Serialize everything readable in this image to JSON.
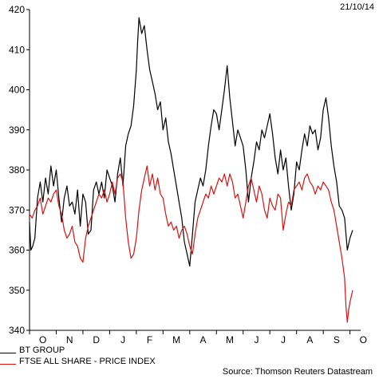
{
  "header": {
    "date": "21/10/14"
  },
  "footer": {
    "source": "Source: Thomson Reuters Datastream"
  },
  "chart_data": {
    "type": "line",
    "title": "",
    "xlabel": "",
    "ylabel": "",
    "ylim": [
      340,
      420
    ],
    "yticks": [
      340,
      350,
      360,
      370,
      380,
      390,
      400,
      410,
      420
    ],
    "ytick_labels": [
      "340",
      "350",
      "360",
      "370",
      "380",
      "390",
      "400",
      "410",
      "420"
    ],
    "x_categories": [
      "O",
      "N",
      "D",
      "J",
      "F",
      "M",
      "A",
      "M",
      "J",
      "J",
      "A",
      "S",
      "O"
    ],
    "x_range": [
      "2013-10",
      "2014-10"
    ],
    "grid": false,
    "legend_position": "bottom-left",
    "series": [
      {
        "name": "BT GROUP",
        "color": "#000000",
        "points": [
          [
            0.0,
            367
          ],
          [
            0.05,
            360
          ],
          [
            0.12,
            361
          ],
          [
            0.2,
            363
          ],
          [
            0.3,
            373
          ],
          [
            0.4,
            377
          ],
          [
            0.5,
            372
          ],
          [
            0.6,
            378
          ],
          [
            0.7,
            374
          ],
          [
            0.8,
            381
          ],
          [
            0.9,
            376
          ],
          [
            1.0,
            380
          ],
          [
            1.1,
            373
          ],
          [
            1.2,
            367
          ],
          [
            1.3,
            373
          ],
          [
            1.4,
            376
          ],
          [
            1.5,
            371
          ],
          [
            1.6,
            372
          ],
          [
            1.7,
            369
          ],
          [
            1.8,
            375
          ],
          [
            1.9,
            366
          ],
          [
            2.0,
            374
          ],
          [
            2.1,
            372
          ],
          [
            2.2,
            364
          ],
          [
            2.3,
            365
          ],
          [
            2.4,
            375
          ],
          [
            2.5,
            377
          ],
          [
            2.6,
            374
          ],
          [
            2.7,
            377
          ],
          [
            2.8,
            373
          ],
          [
            2.9,
            380
          ],
          [
            3.0,
            378
          ],
          [
            3.1,
            376
          ],
          [
            3.2,
            372
          ],
          [
            3.3,
            379
          ],
          [
            3.4,
            383
          ],
          [
            3.5,
            376
          ],
          [
            3.6,
            386
          ],
          [
            3.7,
            389
          ],
          [
            3.8,
            391
          ],
          [
            3.9,
            396
          ],
          [
            4.0,
            405
          ],
          [
            4.05,
            412
          ],
          [
            4.1,
            418
          ],
          [
            4.2,
            414
          ],
          [
            4.3,
            416
          ],
          [
            4.4,
            410
          ],
          [
            4.5,
            405
          ],
          [
            4.6,
            402
          ],
          [
            4.7,
            399
          ],
          [
            4.8,
            395
          ],
          [
            4.9,
            397
          ],
          [
            5.0,
            390
          ],
          [
            5.1,
            393
          ],
          [
            5.2,
            387
          ],
          [
            5.3,
            384
          ],
          [
            5.4,
            380
          ],
          [
            5.5,
            376
          ],
          [
            5.6,
            372
          ],
          [
            5.7,
            368
          ],
          [
            5.8,
            362
          ],
          [
            5.9,
            359
          ],
          [
            6.0,
            356
          ],
          [
            6.1,
            364
          ],
          [
            6.2,
            372
          ],
          [
            6.3,
            375
          ],
          [
            6.4,
            378
          ],
          [
            6.5,
            376
          ],
          [
            6.6,
            380
          ],
          [
            6.7,
            386
          ],
          [
            6.8,
            391
          ],
          [
            6.9,
            395
          ],
          [
            7.0,
            394
          ],
          [
            7.1,
            390
          ],
          [
            7.2,
            395
          ],
          [
            7.3,
            400
          ],
          [
            7.4,
            406
          ],
          [
            7.5,
            398
          ],
          [
            7.6,
            392
          ],
          [
            7.7,
            386
          ],
          [
            7.8,
            390
          ],
          [
            7.9,
            388
          ],
          [
            8.0,
            386
          ],
          [
            8.1,
            380
          ],
          [
            8.2,
            372
          ],
          [
            8.3,
            378
          ],
          [
            8.4,
            382
          ],
          [
            8.5,
            387
          ],
          [
            8.6,
            385
          ],
          [
            8.7,
            390
          ],
          [
            8.8,
            388
          ],
          [
            8.9,
            391
          ],
          [
            9.0,
            394
          ],
          [
            9.1,
            389
          ],
          [
            9.2,
            383
          ],
          [
            9.3,
            379
          ],
          [
            9.4,
            385
          ],
          [
            9.5,
            380
          ],
          [
            9.6,
            383
          ],
          [
            9.7,
            376
          ],
          [
            9.8,
            370
          ],
          [
            9.9,
            374
          ],
          [
            10.0,
            382
          ],
          [
            10.1,
            380
          ],
          [
            10.2,
            385
          ],
          [
            10.3,
            389
          ],
          [
            10.4,
            386
          ],
          [
            10.5,
            391
          ],
          [
            10.6,
            389
          ],
          [
            10.7,
            390
          ],
          [
            10.8,
            385
          ],
          [
            10.9,
            388
          ],
          [
            11.0,
            395
          ],
          [
            11.1,
            398
          ],
          [
            11.2,
            393
          ],
          [
            11.3,
            386
          ],
          [
            11.4,
            381
          ],
          [
            11.5,
            377
          ],
          [
            11.6,
            371
          ],
          [
            11.7,
            370
          ],
          [
            11.8,
            368
          ],
          [
            11.9,
            360
          ],
          [
            12.0,
            363
          ],
          [
            12.1,
            365
          ]
        ]
      },
      {
        "name": "FTSE ALL SHARE - PRICE INDEX",
        "color": "#dd1111",
        "points": [
          [
            0.0,
            369
          ],
          [
            0.1,
            368
          ],
          [
            0.2,
            370
          ],
          [
            0.3,
            371
          ],
          [
            0.4,
            373
          ],
          [
            0.5,
            369
          ],
          [
            0.6,
            371
          ],
          [
            0.7,
            373
          ],
          [
            0.8,
            372
          ],
          [
            0.9,
            374
          ],
          [
            1.0,
            375
          ],
          [
            1.1,
            371
          ],
          [
            1.2,
            369
          ],
          [
            1.3,
            365
          ],
          [
            1.4,
            363
          ],
          [
            1.5,
            364
          ],
          [
            1.6,
            366
          ],
          [
            1.7,
            362
          ],
          [
            1.8,
            361
          ],
          [
            1.9,
            358
          ],
          [
            2.0,
            357
          ],
          [
            2.1,
            363
          ],
          [
            2.2,
            366
          ],
          [
            2.3,
            368
          ],
          [
            2.4,
            370
          ],
          [
            2.5,
            372
          ],
          [
            2.6,
            374
          ],
          [
            2.7,
            373
          ],
          [
            2.8,
            375
          ],
          [
            2.9,
            372
          ],
          [
            3.0,
            374
          ],
          [
            3.1,
            377
          ],
          [
            3.2,
            374
          ],
          [
            3.3,
            378
          ],
          [
            3.4,
            379
          ],
          [
            3.5,
            377
          ],
          [
            3.6,
            368
          ],
          [
            3.7,
            362
          ],
          [
            3.8,
            358
          ],
          [
            3.9,
            359
          ],
          [
            4.0,
            363
          ],
          [
            4.1,
            370
          ],
          [
            4.2,
            375
          ],
          [
            4.3,
            378
          ],
          [
            4.4,
            381
          ],
          [
            4.5,
            376
          ],
          [
            4.6,
            379
          ],
          [
            4.7,
            375
          ],
          [
            4.8,
            378
          ],
          [
            4.9,
            374
          ],
          [
            5.0,
            373
          ],
          [
            5.1,
            369
          ],
          [
            5.2,
            366
          ],
          [
            5.3,
            367
          ],
          [
            5.4,
            365
          ],
          [
            5.5,
            366
          ],
          [
            5.6,
            363
          ],
          [
            5.7,
            365
          ],
          [
            5.8,
            366
          ],
          [
            5.9,
            364
          ],
          [
            6.0,
            361
          ],
          [
            6.1,
            359
          ],
          [
            6.2,
            364
          ],
          [
            6.3,
            368
          ],
          [
            6.4,
            370
          ],
          [
            6.5,
            372
          ],
          [
            6.6,
            374
          ],
          [
            6.7,
            373
          ],
          [
            6.8,
            376
          ],
          [
            6.9,
            374
          ],
          [
            7.0,
            376
          ],
          [
            7.1,
            378
          ],
          [
            7.2,
            377
          ],
          [
            7.3,
            379
          ],
          [
            7.4,
            376
          ],
          [
            7.5,
            379
          ],
          [
            7.6,
            377
          ],
          [
            7.7,
            373
          ],
          [
            7.8,
            374
          ],
          [
            7.9,
            371
          ],
          [
            8.0,
            368
          ],
          [
            8.1,
            372
          ],
          [
            8.2,
            376
          ],
          [
            8.3,
            378
          ],
          [
            8.4,
            375
          ],
          [
            8.5,
            372
          ],
          [
            8.6,
            376
          ],
          [
            8.7,
            374
          ],
          [
            8.8,
            370
          ],
          [
            8.9,
            368
          ],
          [
            9.0,
            373
          ],
          [
            9.1,
            371
          ],
          [
            9.2,
            370
          ],
          [
            9.3,
            374
          ],
          [
            9.4,
            373
          ],
          [
            9.5,
            365
          ],
          [
            9.6,
            369
          ],
          [
            9.7,
            372
          ],
          [
            9.8,
            371
          ],
          [
            9.9,
            375
          ],
          [
            10.0,
            376
          ],
          [
            10.1,
            377
          ],
          [
            10.2,
            375
          ],
          [
            10.3,
            378
          ],
          [
            10.4,
            379
          ],
          [
            10.5,
            377
          ],
          [
            10.6,
            376
          ],
          [
            10.7,
            374
          ],
          [
            10.8,
            376
          ],
          [
            10.9,
            375
          ],
          [
            11.0,
            377
          ],
          [
            11.1,
            376
          ],
          [
            11.2,
            375
          ],
          [
            11.3,
            372
          ],
          [
            11.4,
            370
          ],
          [
            11.5,
            366
          ],
          [
            11.6,
            362
          ],
          [
            11.7,
            358
          ],
          [
            11.8,
            353
          ],
          [
            11.85,
            346
          ],
          [
            11.9,
            342
          ],
          [
            11.95,
            345
          ],
          [
            12.0,
            347
          ],
          [
            12.1,
            350
          ]
        ]
      }
    ]
  }
}
